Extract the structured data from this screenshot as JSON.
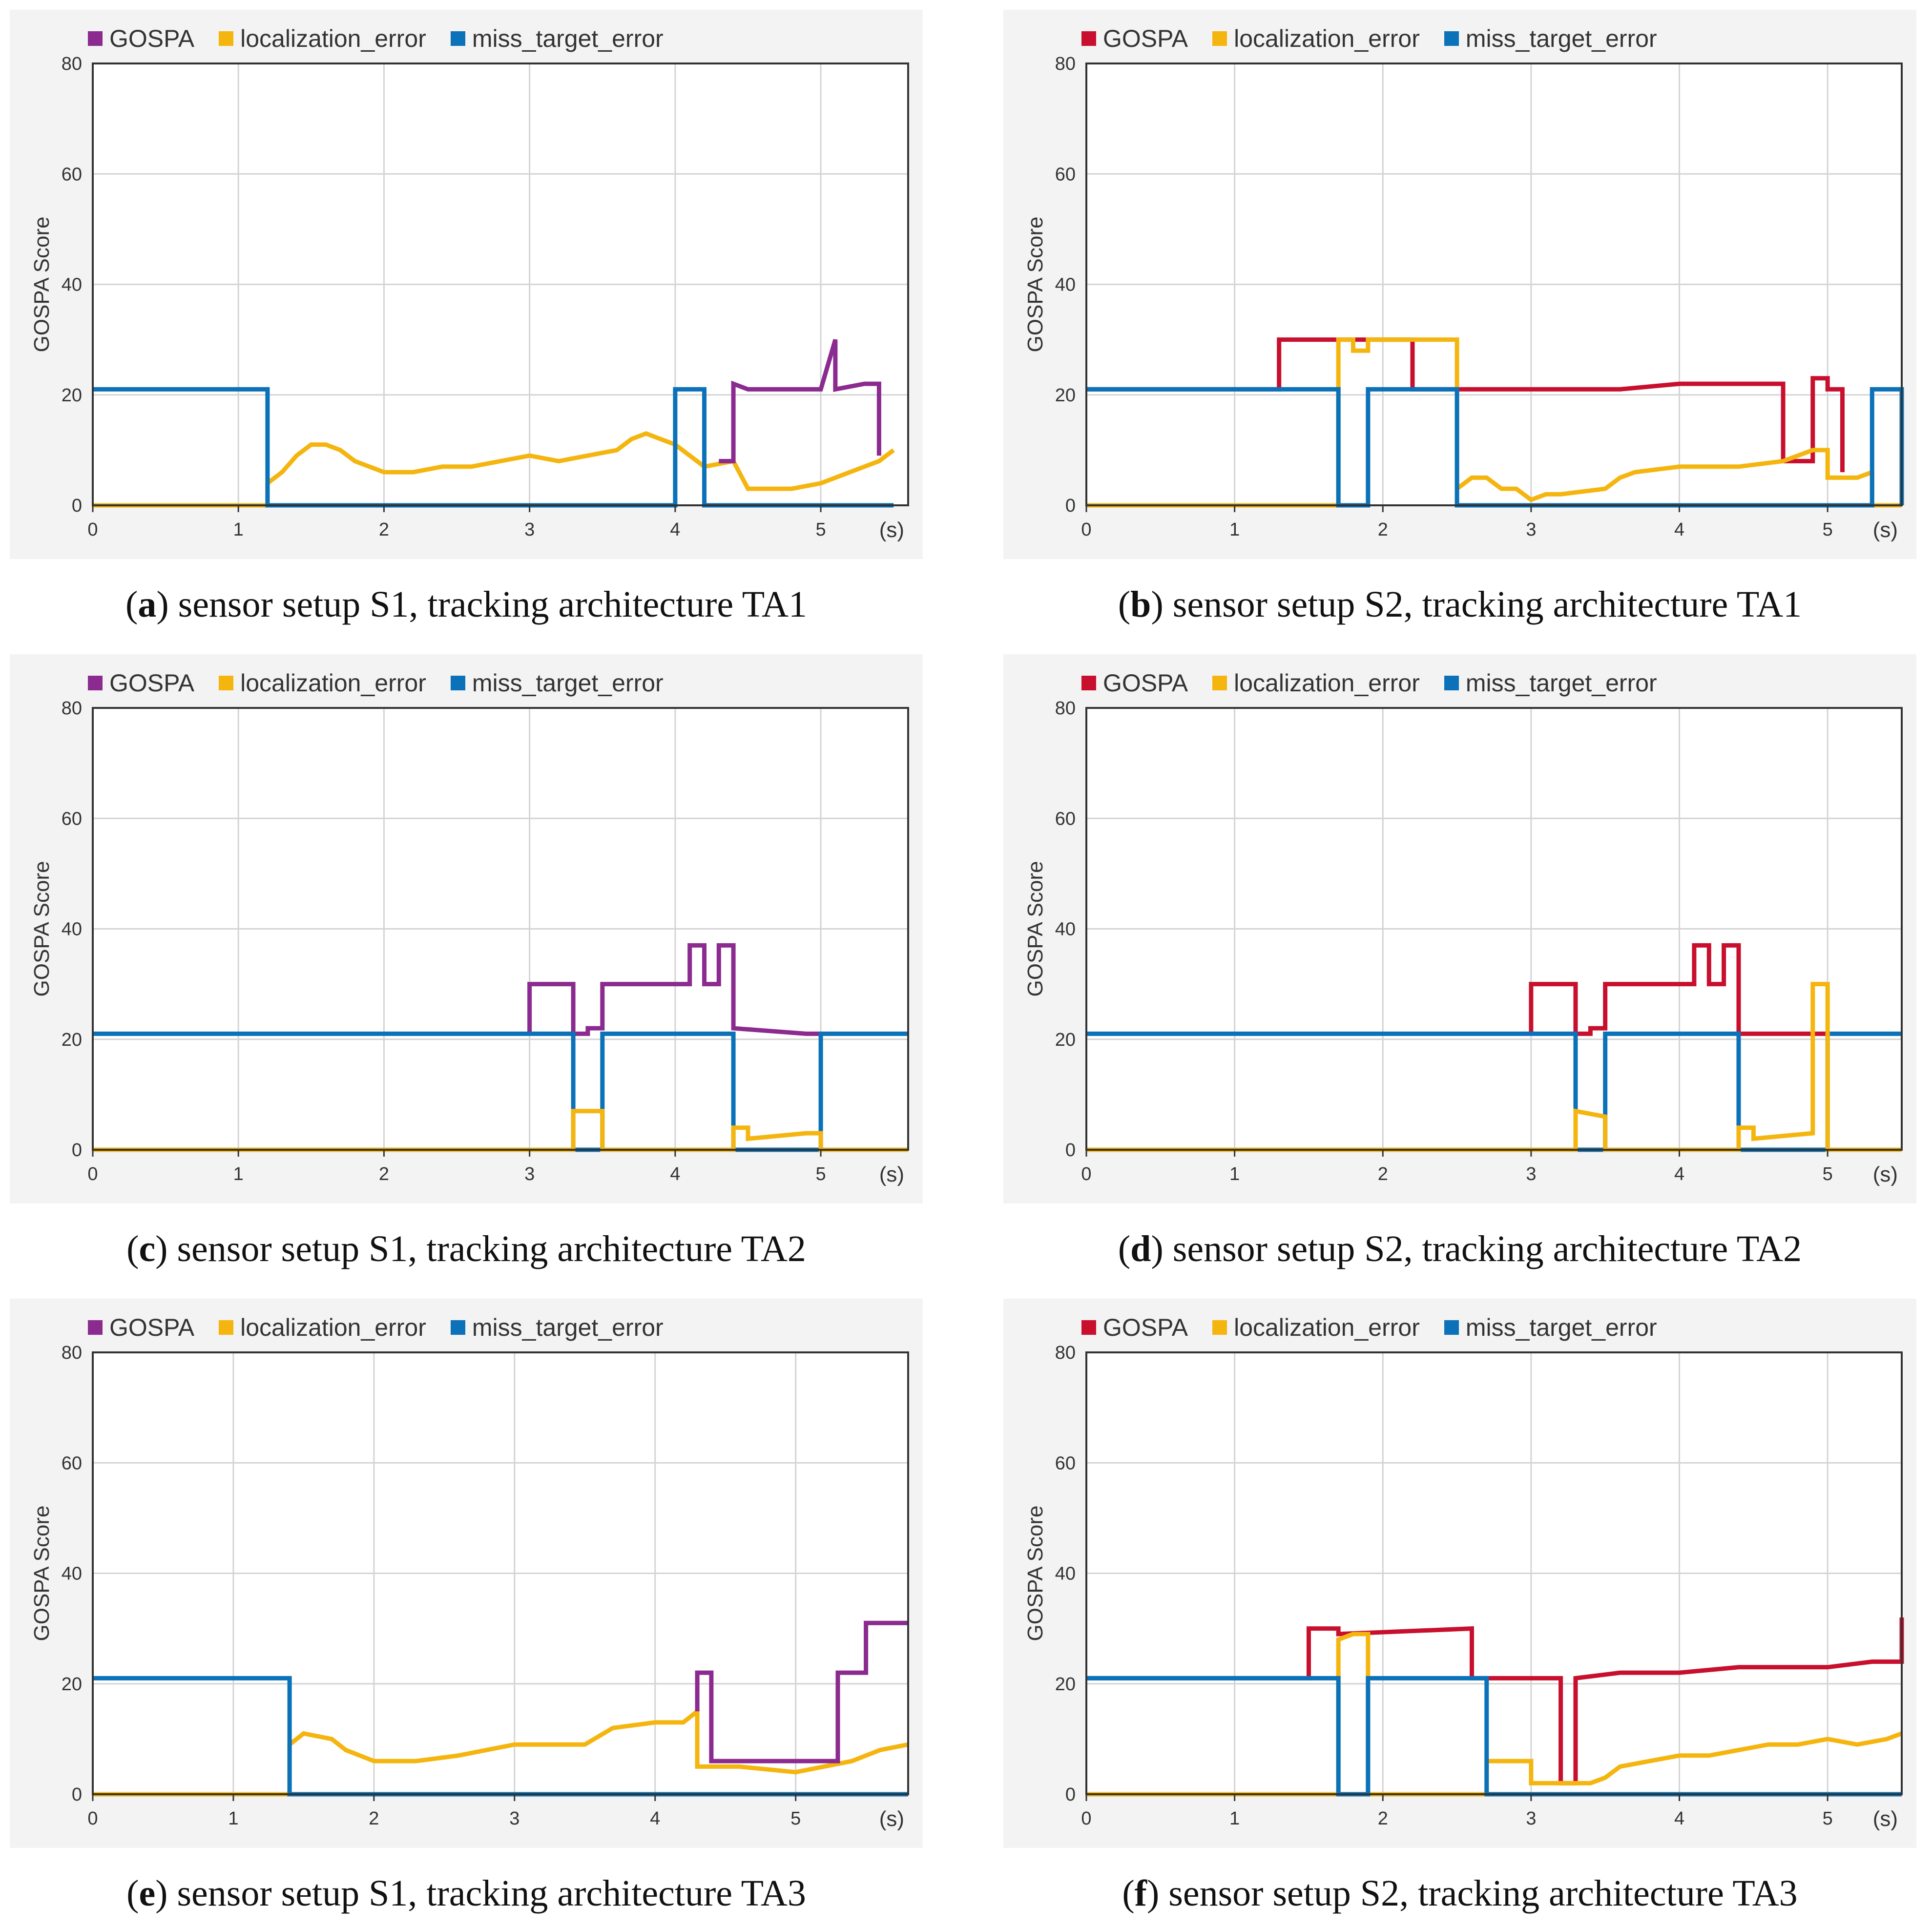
{
  "figure": {
    "legend_labels": [
      "GOSPA",
      "localization_error",
      "miss_target_error"
    ],
    "ylabel": "GOSPA Score",
    "x_unit_label": "(s)",
    "colors": {
      "gospa_s1": "#8b2a8f",
      "gospa_s2": "#c8102e",
      "localization_error": "#f5b50f",
      "miss_target_error": "#0b72b9",
      "grid": "#d4d4d4",
      "axis": "#333333"
    }
  },
  "chart_data": [
    {
      "type": "line",
      "panel_label": "a",
      "caption": "sensor setup S1, tracking architecture TA1",
      "ylabel": "GOSPA Score",
      "xlabel": "(s)",
      "xlim": [
        0,
        5.6
      ],
      "ylim": [
        0,
        80
      ],
      "xticks": [
        0,
        1,
        2,
        3,
        4,
        5
      ],
      "yticks": [
        0,
        20,
        40,
        60,
        80
      ],
      "gospa_color": "#8b2a8f",
      "series": [
        {
          "name": "localization_error",
          "color": "#f5b50f",
          "x": [
            0,
            1.2,
            1.2,
            1.3,
            1.4,
            1.5,
            1.6,
            1.7,
            1.8,
            1.9,
            2.0,
            2.2,
            2.4,
            2.6,
            2.8,
            3.0,
            3.2,
            3.4,
            3.6,
            3.7,
            3.8,
            3.9,
            4.0,
            4.2,
            4.4,
            4.5,
            4.8,
            5.0,
            5.2,
            5.4,
            5.5,
            5.5
          ],
          "y": [
            0,
            0,
            4,
            6,
            9,
            11,
            11,
            10,
            8,
            7,
            6,
            6,
            7,
            7,
            8,
            9,
            8,
            9,
            10,
            12,
            13,
            12,
            11,
            7,
            8,
            3,
            3,
            4,
            6,
            8,
            10,
            10
          ]
        },
        {
          "name": "miss_target_error",
          "color": "#0b72b9",
          "x": [
            0,
            1.2,
            1.2,
            4.0,
            4.0,
            4.2,
            4.2,
            5.5
          ],
          "y": [
            21,
            21,
            0,
            0,
            21,
            21,
            0,
            0
          ]
        },
        {
          "name": "GOSPA",
          "color": "#8b2a8f",
          "x": [
            4.3,
            4.4,
            4.4,
            4.5,
            5.0,
            5.1,
            5.1,
            5.3,
            5.4,
            5.4
          ],
          "y": [
            8,
            8,
            22,
            21,
            21,
            30,
            21,
            22,
            22,
            9
          ]
        }
      ]
    },
    {
      "type": "line",
      "panel_label": "b",
      "caption": "sensor setup S2, tracking architecture TA1",
      "ylabel": "GOSPA Score",
      "xlabel": "(s)",
      "xlim": [
        0,
        5.5
      ],
      "ylim": [
        0,
        80
      ],
      "xticks": [
        0,
        1,
        2,
        3,
        4,
        5
      ],
      "yticks": [
        0,
        20,
        40,
        60,
        80
      ],
      "gospa_color": "#c8102e",
      "series": [
        {
          "name": "GOSPA",
          "color": "#c8102e",
          "x": [
            0,
            1.3,
            1.3,
            2.2,
            2.2,
            2.5,
            3.1,
            3.1,
            3.6,
            4.0,
            4.4,
            4.7,
            4.7,
            4.9,
            4.9,
            5.0,
            5.0,
            5.1,
            5.1
          ],
          "y": [
            21,
            21,
            30,
            30,
            21,
            21,
            21,
            21,
            21,
            22,
            22,
            22,
            8,
            8,
            23,
            23,
            21,
            21,
            6
          ]
        },
        {
          "name": "localization_error",
          "color": "#f5b50f",
          "x": [
            0,
            1.7,
            1.7,
            1.8,
            1.8,
            1.9,
            1.9,
            2.5,
            2.5,
            2.6,
            2.7,
            2.8,
            2.9,
            3.0,
            3.1,
            3.2,
            3.5,
            3.6,
            3.7,
            4.0,
            4.4,
            4.7,
            4.8,
            4.9,
            5.0,
            5.0,
            5.2,
            5.3,
            5.3,
            5.5
          ],
          "y": [
            0,
            0,
            30,
            30,
            28,
            28,
            30,
            30,
            3,
            5,
            5,
            3,
            3,
            1,
            2,
            2,
            3,
            5,
            6,
            7,
            7,
            8,
            9,
            10,
            10,
            5,
            5,
            6,
            0,
            0
          ]
        },
        {
          "name": "miss_target_error",
          "color": "#0b72b9",
          "x": [
            0,
            1.7,
            1.7,
            1.9,
            1.9,
            2.5,
            2.5,
            5.3,
            5.3,
            5.5,
            5.5
          ],
          "y": [
            21,
            21,
            0,
            0,
            21,
            21,
            0,
            0,
            21,
            21,
            0
          ]
        }
      ]
    },
    {
      "type": "line",
      "panel_label": "c",
      "caption": "sensor setup S1, tracking architecture TA2",
      "ylabel": "GOSPA Score",
      "xlabel": "(s)",
      "xlim": [
        0,
        5.6
      ],
      "ylim": [
        0,
        80
      ],
      "xticks": [
        0,
        1,
        2,
        3,
        4,
        5
      ],
      "yticks": [
        0,
        20,
        40,
        60,
        80
      ],
      "gospa_color": "#8b2a8f",
      "series": [
        {
          "name": "GOSPA",
          "color": "#8b2a8f",
          "x": [
            3.0,
            3.0,
            3.3,
            3.3,
            3.4,
            3.4,
            3.5,
            3.5,
            4.1,
            4.1,
            4.2,
            4.2,
            4.3,
            4.3,
            4.4,
            4.4,
            4.9,
            5.0
          ],
          "y": [
            21,
            30,
            30,
            21,
            21,
            22,
            22,
            30,
            30,
            37,
            37,
            30,
            30,
            37,
            37,
            22,
            21,
            21
          ]
        },
        {
          "name": "miss_target_error",
          "color": "#0b72b9",
          "x": [
            0,
            3.3,
            3.3,
            3.5,
            3.5,
            4.4,
            4.4,
            5.0,
            5.0,
            5.6
          ],
          "y": [
            21,
            21,
            0,
            0,
            21,
            21,
            0,
            0,
            21,
            21
          ]
        },
        {
          "name": "localization_error",
          "color": "#f5b50f",
          "x": [
            0,
            3.3,
            3.3,
            3.5,
            3.5,
            4.4,
            4.4,
            4.5,
            4.5,
            4.9,
            5.0,
            5.0,
            5.6
          ],
          "y": [
            0,
            0,
            7,
            7,
            0,
            0,
            4,
            4,
            2,
            3,
            3,
            0,
            0
          ]
        }
      ]
    },
    {
      "type": "line",
      "panel_label": "d",
      "caption": "sensor setup S2, tracking architecture TA2",
      "ylabel": "GOSPA Score",
      "xlabel": "(s)",
      "xlim": [
        0,
        5.5
      ],
      "ylim": [
        0,
        80
      ],
      "xticks": [
        0,
        1,
        2,
        3,
        4,
        5
      ],
      "yticks": [
        0,
        20,
        40,
        60,
        80
      ],
      "gospa_color": "#c8102e",
      "series": [
        {
          "name": "GOSPA",
          "color": "#c8102e",
          "x": [
            3.0,
            3.0,
            3.3,
            3.3,
            3.4,
            3.4,
            3.5,
            3.5,
            4.1,
            4.1,
            4.2,
            4.2,
            4.3,
            4.3,
            4.4,
            4.4,
            5.0
          ],
          "y": [
            21,
            30,
            30,
            21,
            21,
            22,
            22,
            30,
            30,
            37,
            37,
            30,
            30,
            37,
            37,
            21,
            21
          ]
        },
        {
          "name": "miss_target_error",
          "color": "#0b72b9",
          "x": [
            0,
            3.3,
            3.3,
            3.5,
            3.5,
            4.4,
            4.4,
            5.0,
            5.0,
            5.5
          ],
          "y": [
            21,
            21,
            0,
            0,
            21,
            21,
            0,
            0,
            21,
            21
          ]
        },
        {
          "name": "localization_error",
          "color": "#f5b50f",
          "x": [
            0,
            3.3,
            3.3,
            3.5,
            3.5,
            4.4,
            4.4,
            4.5,
            4.5,
            4.9,
            4.9,
            5.0,
            5.0,
            5.5
          ],
          "y": [
            0,
            0,
            7,
            6,
            0,
            0,
            4,
            4,
            2,
            3,
            30,
            30,
            0,
            0
          ]
        }
      ]
    },
    {
      "type": "line",
      "panel_label": "e",
      "caption": "sensor setup S1, tracking architecture TA3",
      "ylabel": "GOSPA Score",
      "xlabel": "(s)",
      "xlim": [
        0,
        5.8
      ],
      "ylim": [
        0,
        80
      ],
      "xticks": [
        0,
        1,
        2,
        3,
        4,
        5
      ],
      "yticks": [
        0,
        20,
        40,
        60,
        80
      ],
      "gospa_color": "#8b2a8f",
      "series": [
        {
          "name": "localization_error",
          "color": "#f5b50f",
          "x": [
            0,
            1.4,
            1.4,
            1.5,
            1.7,
            1.8,
            1.9,
            2.0,
            2.3,
            2.6,
            3.0,
            3.5,
            3.7,
            4.0,
            4.2,
            4.3,
            4.3,
            4.6,
            5.0,
            5.2,
            5.4,
            5.6,
            5.8
          ],
          "y": [
            0,
            0,
            9,
            11,
            10,
            8,
            7,
            6,
            6,
            7,
            9,
            9,
            12,
            13,
            13,
            15,
            5,
            5,
            4,
            5,
            6,
            8,
            9
          ]
        },
        {
          "name": "miss_target_error",
          "color": "#0b72b9",
          "x": [
            0,
            1.4,
            1.4,
            5.8
          ],
          "y": [
            21,
            21,
            0,
            0
          ]
        },
        {
          "name": "GOSPA",
          "color": "#8b2a8f",
          "x": [
            4.3,
            4.3,
            4.4,
            4.4,
            5.3,
            5.3,
            5.5,
            5.5,
            5.8
          ],
          "y": [
            15,
            22,
            22,
            6,
            6,
            22,
            22,
            31,
            31
          ]
        }
      ]
    },
    {
      "type": "line",
      "panel_label": "f",
      "caption": "sensor setup S2, tracking architecture TA3",
      "ylabel": "GOSPA Score",
      "xlabel": "(s)",
      "xlim": [
        0,
        5.5
      ],
      "ylim": [
        0,
        80
      ],
      "xticks": [
        0,
        1,
        2,
        3,
        4,
        5
      ],
      "yticks": [
        0,
        20,
        40,
        60,
        80
      ],
      "gospa_color": "#c8102e",
      "series": [
        {
          "name": "GOSPA",
          "color": "#c8102e",
          "x": [
            0,
            1.5,
            1.5,
            1.7,
            1.7,
            2.6,
            2.6,
            3.0,
            3.0,
            3.2,
            3.2,
            3.3,
            3.3,
            3.6,
            4.0,
            4.4,
            4.8,
            5.0,
            5.3,
            5.5,
            5.5
          ],
          "y": [
            21,
            21,
            30,
            30,
            29,
            30,
            21,
            21,
            21,
            21,
            2,
            2,
            21,
            22,
            22,
            23,
            23,
            23,
            24,
            24,
            32
          ]
        },
        {
          "name": "localization_error",
          "color": "#f5b50f",
          "x": [
            0,
            1.7,
            1.7,
            1.8,
            1.9,
            1.9,
            2.7,
            2.7,
            3.0,
            3.0,
            3.4,
            3.5,
            3.6,
            3.8,
            4.0,
            4.2,
            4.4,
            4.6,
            4.8,
            5.0,
            5.2,
            5.4,
            5.5
          ],
          "y": [
            0,
            0,
            28,
            29,
            29,
            0,
            0,
            6,
            6,
            2,
            2,
            3,
            5,
            6,
            7,
            7,
            8,
            9,
            9,
            10,
            9,
            10,
            11
          ]
        },
        {
          "name": "miss_target_error",
          "color": "#0b72b9",
          "x": [
            0,
            1.7,
            1.7,
            1.9,
            1.9,
            2.7,
            2.7,
            5.5
          ],
          "y": [
            21,
            21,
            0,
            0,
            21,
            21,
            0,
            0
          ]
        }
      ]
    }
  ]
}
